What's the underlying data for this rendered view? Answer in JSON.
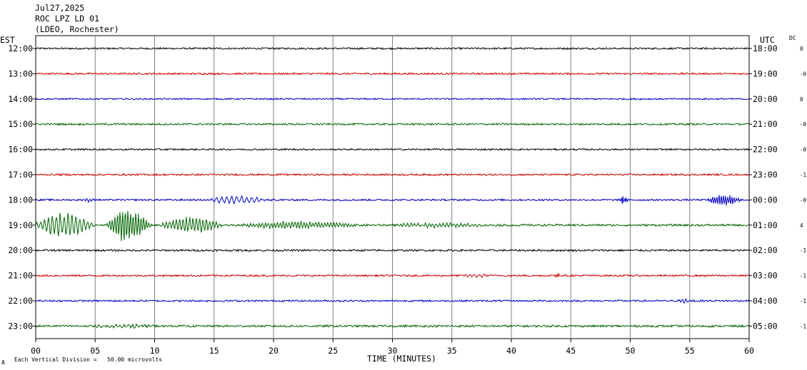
{
  "header": {
    "date": "Jul27,2025",
    "station": "ROC LPZ LD 01",
    "network": "(LDEO, Rochester)"
  },
  "labels": {
    "left_zone": "EST",
    "right_zone": "UTC",
    "dc": "DC",
    "xlabel": "TIME (MINUTES)",
    "footer": "Each Vertical Division =   50.00 microvolts",
    "footer_mark": "A"
  },
  "colors": {
    "black": "#000000",
    "red": "#cc0000",
    "blue": "#0000c0",
    "green": "#006400",
    "grid": "#808080"
  },
  "chart_data": {
    "type": "line",
    "title": "ROC LPZ LD 01",
    "xlabel": "TIME (MINUTES)",
    "xlim": [
      0,
      60
    ],
    "x_ticks": [
      "00",
      "05",
      "10",
      "15",
      "20",
      "25",
      "30",
      "35",
      "40",
      "45",
      "50",
      "55",
      "60"
    ],
    "rows": [
      {
        "est": "12:00",
        "utc": "18:00",
        "dc": "0",
        "color": "black",
        "noise": 1.2,
        "events": []
      },
      {
        "est": "13:00",
        "utc": "19:00",
        "dc": "-0",
        "color": "red",
        "noise": 1.2,
        "events": []
      },
      {
        "est": "14:00",
        "utc": "20:00",
        "dc": "0",
        "color": "blue",
        "noise": 1.0,
        "events": []
      },
      {
        "est": "15:00",
        "utc": "21:00",
        "dc": "-0",
        "color": "green",
        "noise": 1.2,
        "events": []
      },
      {
        "est": "16:00",
        "utc": "22:00",
        "dc": "-0",
        "color": "black",
        "noise": 1.1,
        "events": []
      },
      {
        "est": "17:00",
        "utc": "23:00",
        "dc": "-1",
        "color": "red",
        "noise": 1.2,
        "events": []
      },
      {
        "est": "18:00",
        "utc": "00:00",
        "dc": "-0",
        "color": "blue",
        "noise": 1.2,
        "events": [
          {
            "start": 4.0,
            "end": 5.2,
            "amp": 3,
            "period": 0.25
          },
          {
            "start": 14.5,
            "end": 20.5,
            "amp": 6,
            "period": 0.42
          },
          {
            "start": 49.0,
            "end": 50.0,
            "amp": 7,
            "period": 0.15
          },
          {
            "start": 56.5,
            "end": 60.0,
            "amp": 9,
            "period": 0.18
          }
        ]
      },
      {
        "est": "19:00",
        "utc": "01:00",
        "dc": "4",
        "color": "green",
        "noise": 1.4,
        "events": [
          {
            "start": 0.0,
            "end": 6.0,
            "amp": 18,
            "period": 0.33
          },
          {
            "start": 6.0,
            "end": 10.5,
            "amp": 24,
            "period": 0.22
          },
          {
            "start": 10.5,
            "end": 17.0,
            "amp": 12,
            "period": 0.28
          },
          {
            "start": 17.0,
            "end": 30.0,
            "amp": 5,
            "period": 0.25
          },
          {
            "start": 30.0,
            "end": 40.0,
            "amp": 3,
            "period": 0.3
          }
        ]
      },
      {
        "est": "20:00",
        "utc": "02:00",
        "dc": "-1",
        "color": "black",
        "noise": 1.3,
        "events": []
      },
      {
        "est": "21:00",
        "utc": "03:00",
        "dc": "-1",
        "color": "red",
        "noise": 1.2,
        "events": [
          {
            "start": 36.0,
            "end": 38.5,
            "amp": 2.5,
            "period": 0.4
          },
          {
            "start": 43.5,
            "end": 44.5,
            "amp": 2.5,
            "period": 0.15
          }
        ]
      },
      {
        "est": "22:00",
        "utc": "04:00",
        "dc": "-1",
        "color": "blue",
        "noise": 1.2,
        "events": [
          {
            "start": 54.0,
            "end": 55.5,
            "amp": 2.5,
            "period": 0.3
          }
        ]
      },
      {
        "est": "23:00",
        "utc": "05:00",
        "dc": "-1",
        "color": "green",
        "noise": 1.4,
        "events": [
          {
            "start": 4.0,
            "end": 12.0,
            "amp": 2.5,
            "period": 0.35
          }
        ]
      }
    ]
  }
}
